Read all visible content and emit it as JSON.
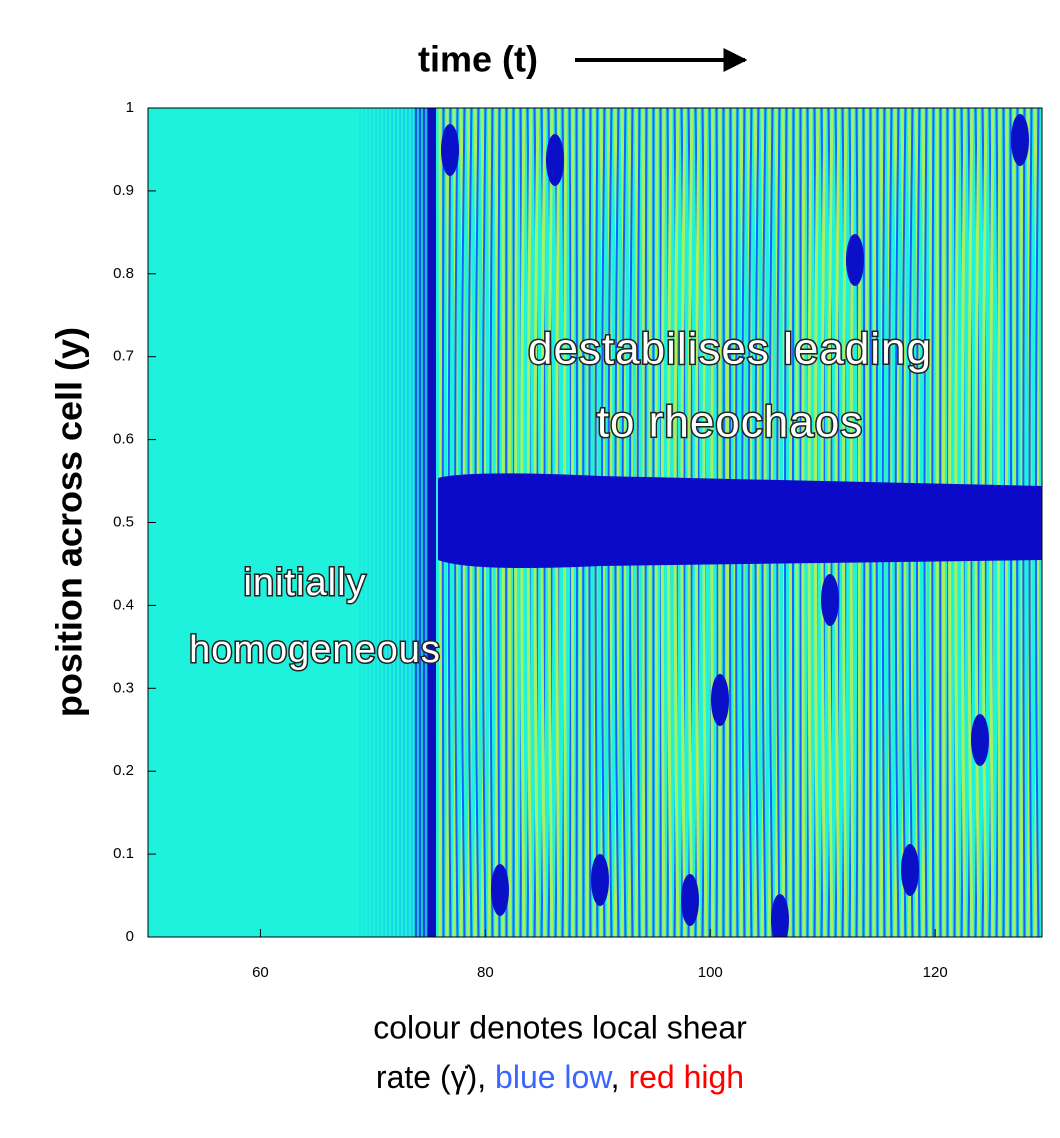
{
  "chart_data": {
    "type": "heatmap",
    "title": "time (t)",
    "y_label": "position across cell (y)",
    "xlim": [
      50,
      129.5
    ],
    "xticks": [
      60,
      80,
      100,
      120
    ],
    "ylim": [
      0,
      1
    ],
    "yticks": [
      0,
      0.1,
      0.2,
      0.3,
      0.4,
      0.5,
      0.6,
      0.7,
      0.8,
      0.9,
      1
    ],
    "annotations": [
      "destabilises leading",
      "to rheochaos",
      "initially",
      "homogeneous"
    ],
    "caption": {
      "line1": "colour denotes local shear",
      "line2_start": "rate (γ̇), ",
      "blue": "blue low",
      "sep": ", ",
      "red": "red high"
    }
  }
}
